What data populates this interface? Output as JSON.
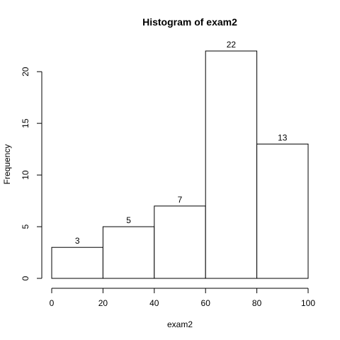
{
  "chart_data": {
    "type": "bar",
    "title": "Histogram of exam2",
    "xlabel": "exam2",
    "ylabel": "Frequency",
    "bins": [
      {
        "start": 0,
        "end": 20,
        "value": 3,
        "label": "3"
      },
      {
        "start": 20,
        "end": 40,
        "value": 5,
        "label": "5"
      },
      {
        "start": 40,
        "end": 60,
        "value": 7,
        "label": "7"
      },
      {
        "start": 60,
        "end": 80,
        "value": 22,
        "label": "22"
      },
      {
        "start": 80,
        "end": 100,
        "value": 13,
        "label": "13"
      }
    ],
    "xticks": [
      0,
      20,
      40,
      60,
      80,
      100
    ],
    "xtick_labels": [
      "0",
      "20",
      "40",
      "60",
      "80",
      "100"
    ],
    "yticks": [
      0,
      5,
      10,
      15,
      20
    ],
    "ytick_labels": [
      "0",
      "5",
      "10",
      "15",
      "20"
    ],
    "xlim": [
      0,
      100
    ],
    "ylim": [
      0,
      22
    ],
    "grid": false,
    "legend": "none",
    "colors": {
      "bar_fill": "#ffffff",
      "bar_stroke": "#000000",
      "text": "#000000"
    }
  }
}
